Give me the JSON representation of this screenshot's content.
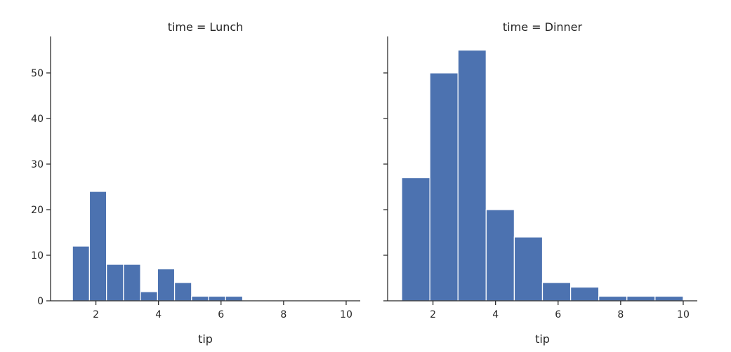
{
  "chart_data": [
    {
      "type": "bar",
      "title": "time = Lunch",
      "xlabel": "tip",
      "ylabel": "",
      "xlim": [
        0.55,
        10.45
      ],
      "ylim": [
        0,
        58
      ],
      "xticks": [
        "2",
        "4",
        "6",
        "8",
        "10"
      ],
      "yticks": [
        "0",
        "10",
        "20",
        "30",
        "40",
        "50"
      ],
      "bin_width": 0.544,
      "bin_starts": [
        1.25,
        1.794,
        2.338,
        2.882,
        3.426,
        3.97,
        4.514,
        5.058,
        5.602,
        6.146
      ],
      "values": [
        12,
        24,
        8,
        8,
        2,
        7,
        4,
        1,
        1,
        1
      ],
      "color": "#4c72b0",
      "grid": false,
      "legend": "none"
    },
    {
      "type": "bar",
      "title": "time = Dinner",
      "xlabel": "tip",
      "ylabel": "",
      "xlim": [
        0.55,
        10.45
      ],
      "ylim": [
        0,
        58
      ],
      "xticks": [
        "2",
        "4",
        "6",
        "8",
        "10"
      ],
      "yticks": [],
      "bin_width": 0.9,
      "bin_starts": [
        1.0,
        1.9,
        2.8,
        3.7,
        4.6,
        5.5,
        6.4,
        7.3,
        8.2,
        9.1
      ],
      "values": [
        27,
        50,
        55,
        20,
        14,
        4,
        3,
        1,
        1,
        1
      ],
      "color": "#4c72b0",
      "grid": false,
      "legend": "none"
    }
  ]
}
